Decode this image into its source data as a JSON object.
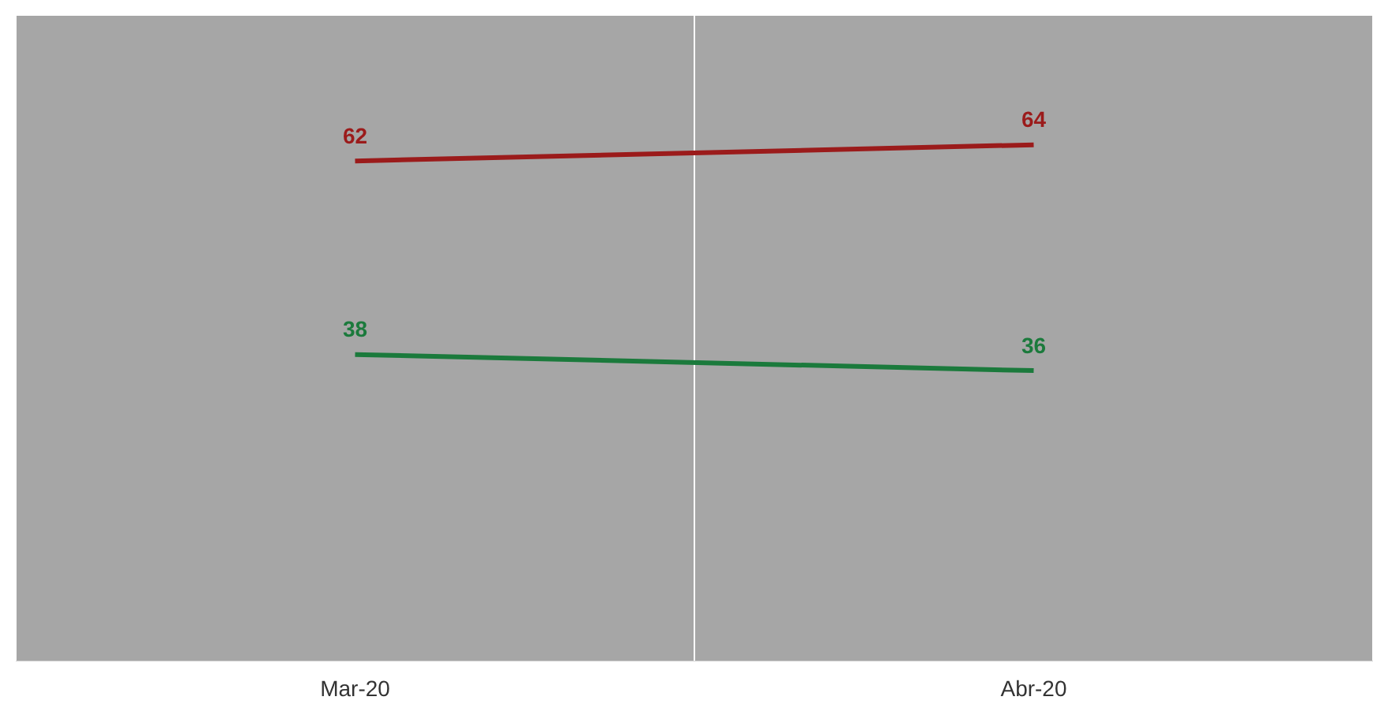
{
  "chart_data": {
    "type": "line",
    "categories": [
      "Mar-20",
      "Abr-20"
    ],
    "series": [
      {
        "color": "#9b1b1b",
        "values": [
          62,
          64
        ]
      },
      {
        "color": "#1b7a3c",
        "values": [
          38,
          36
        ]
      }
    ],
    "data_labels": true,
    "grid": "x",
    "legend": false,
    "marker": "none",
    "line_style": "solid"
  }
}
